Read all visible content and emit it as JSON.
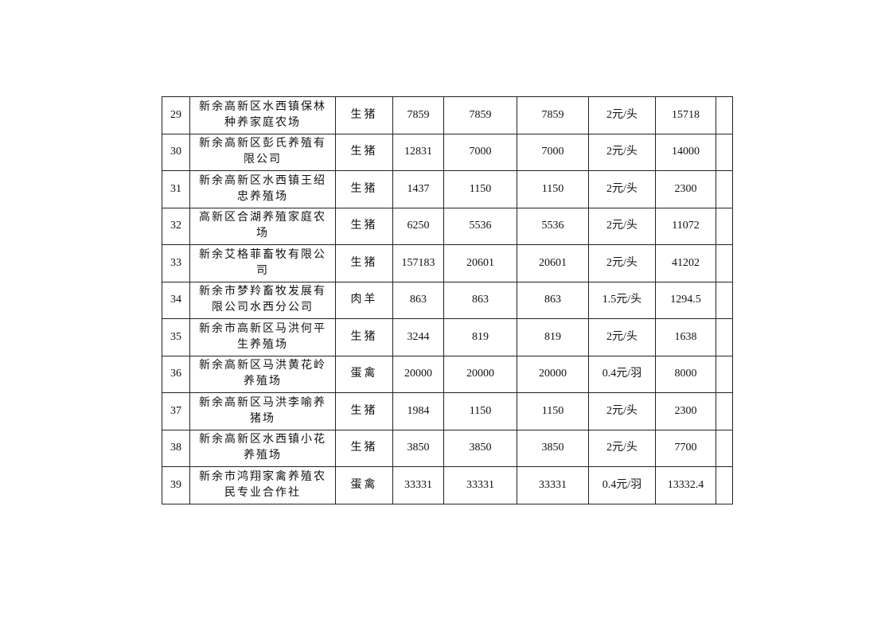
{
  "rows": [
    {
      "no": "29",
      "name": [
        "新余高新区水西镇保林",
        "种养家庭农场"
      ],
      "type": "生猪",
      "c1": "7859",
      "c2": "7859",
      "c3": "7859",
      "price": "2元/头",
      "total": "15718",
      "extra": ""
    },
    {
      "no": "30",
      "name": [
        "新余高新区彭氏养殖有",
        "限公司"
      ],
      "type": "生猪",
      "c1": "12831",
      "c2": "7000",
      "c3": "7000",
      "price": "2元/头",
      "total": "14000",
      "extra": ""
    },
    {
      "no": "31",
      "name": [
        "新余高新区水西镇王绍",
        "忠养殖场"
      ],
      "type": "生猪",
      "c1": "1437",
      "c2": "1150",
      "c3": "1150",
      "price": "2元/头",
      "total": "2300",
      "extra": ""
    },
    {
      "no": "32",
      "name": [
        "高新区合湖养殖家庭农",
        "场"
      ],
      "type": "生猪",
      "c1": "6250",
      "c2": "5536",
      "c3": "5536",
      "price": "2元/头",
      "total": "11072",
      "extra": ""
    },
    {
      "no": "33",
      "name": [
        "新余艾格菲畜牧有限公",
        "司"
      ],
      "type": "生猪",
      "c1": "157183",
      "c2": "20601",
      "c3": "20601",
      "price": "2元/头",
      "total": "41202",
      "extra": ""
    },
    {
      "no": "34",
      "name": [
        "新余市梦羚畜牧发展有",
        "限公司水西分公司"
      ],
      "type": "肉羊",
      "c1": "863",
      "c2": "863",
      "c3": "863",
      "price": "1.5元/头",
      "total": "1294.5",
      "extra": ""
    },
    {
      "no": "35",
      "name": [
        "新余市高新区马洪何平",
        "生养殖场"
      ],
      "type": "生猪",
      "c1": "3244",
      "c2": "819",
      "c3": "819",
      "price": "2元/头",
      "total": "1638",
      "extra": ""
    },
    {
      "no": "36",
      "name": [
        "新余高新区马洪黄花岭",
        "养殖场"
      ],
      "type": "蛋禽",
      "c1": "20000",
      "c2": "20000",
      "c3": "20000",
      "price": "0.4元/羽",
      "total": "8000",
      "extra": ""
    },
    {
      "no": "37",
      "name": [
        "新余高新区马洪李喻养",
        "猪场"
      ],
      "type": "生猪",
      "c1": "1984",
      "c2": "1150",
      "c3": "1150",
      "price": "2元/头",
      "total": "2300",
      "extra": ""
    },
    {
      "no": "38",
      "name": [
        "新余高新区水西镇小花",
        "养殖场"
      ],
      "type": "生猪",
      "c1": "3850",
      "c2": "3850",
      "c3": "3850",
      "price": "2元/头",
      "total": "7700",
      "extra": ""
    },
    {
      "no": "39",
      "name": [
        "新余市鸿翔家禽养殖农",
        "民专业合作社"
      ],
      "type": "蛋禽",
      "c1": "33331",
      "c2": "33331",
      "c3": "33331",
      "price": "0.4元/羽",
      "total": "13332.4",
      "extra": ""
    }
  ]
}
